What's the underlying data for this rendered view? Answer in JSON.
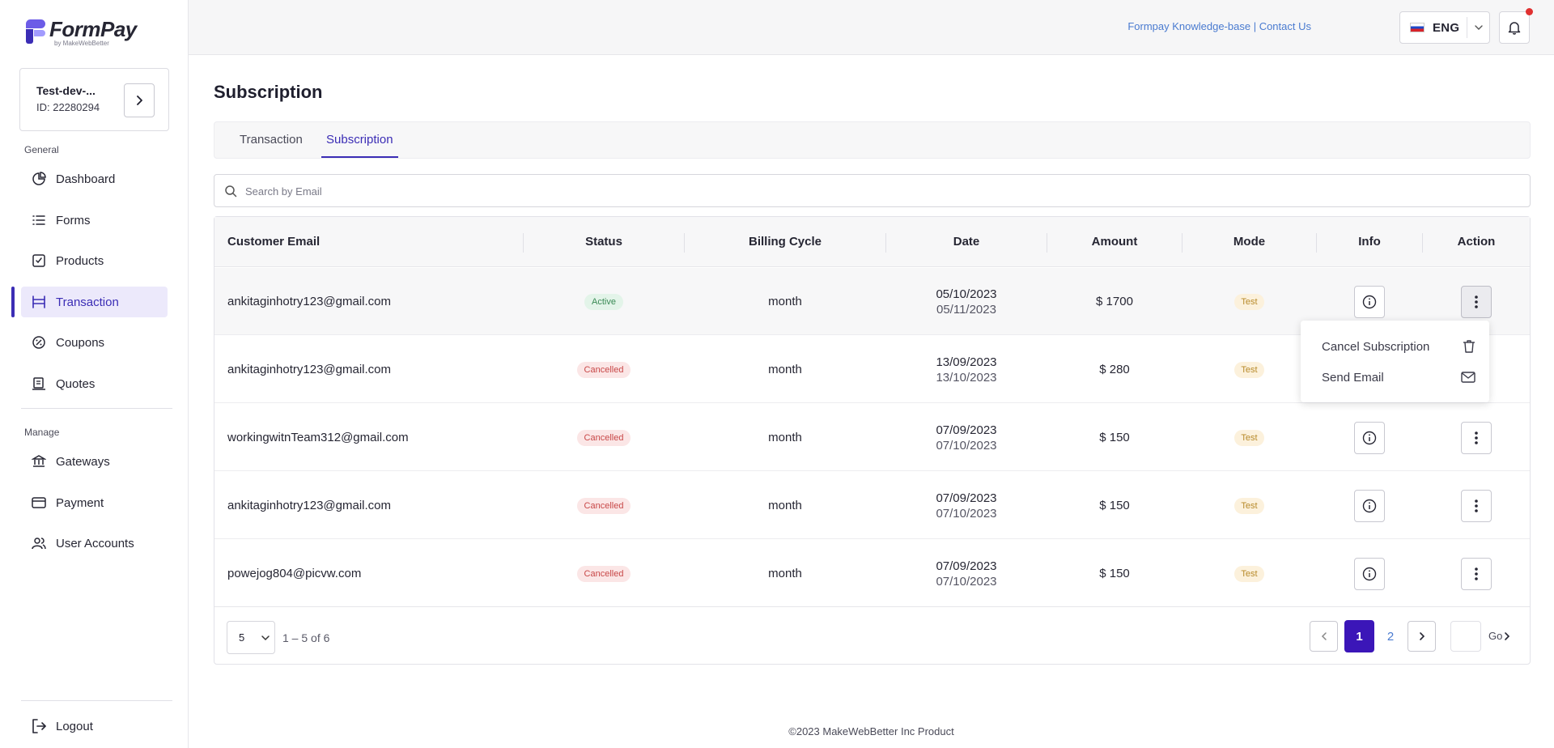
{
  "app": {
    "logo_title": "FormPay",
    "logo_sub": "by MakeWebBetter"
  },
  "account": {
    "name": "Test-dev-...",
    "id": "ID: 22280294"
  },
  "sidebar": {
    "general_label": "General",
    "manage_label": "Manage",
    "items": [
      {
        "label": "Dashboard",
        "icon": "pie-chart-icon"
      },
      {
        "label": "Forms",
        "icon": "list-icon"
      },
      {
        "label": "Products",
        "icon": "product-box-icon"
      },
      {
        "label": "Transaction",
        "icon": "transaction-icon",
        "active": true
      },
      {
        "label": "Coupons",
        "icon": "coupon-icon"
      },
      {
        "label": "Quotes",
        "icon": "quotes-icon"
      },
      {
        "label": "Gateways",
        "icon": "bank-icon"
      },
      {
        "label": "Payment",
        "icon": "card-icon"
      },
      {
        "label": "User Accounts",
        "icon": "users-icon"
      }
    ],
    "logout_label": "Logout"
  },
  "topbar": {
    "knowledge_base": "Formpay Knowledge-base",
    "separator": " | ",
    "contact": "Contact Us",
    "language": "ENG"
  },
  "page": {
    "title": "Subscription",
    "tabs": [
      {
        "label": "Transaction",
        "active": false
      },
      {
        "label": "Subscription",
        "active": true
      }
    ],
    "search_placeholder": "Search by Email"
  },
  "table": {
    "columns": [
      "Customer Email",
      "Status",
      "Billing Cycle",
      "Date",
      "Amount",
      "Mode",
      "Info",
      "Action"
    ],
    "rows": [
      {
        "email": "ankitaginhotry123@gmail.com",
        "status": "Active",
        "cycle": "month",
        "date_start": "05/10/2023",
        "date_end": "05/11/2023",
        "amount": "$ 1700",
        "mode": "Test"
      },
      {
        "email": "ankitaginhotry123@gmail.com",
        "status": "Cancelled",
        "cycle": "month",
        "date_start": "13/09/2023",
        "date_end": "13/10/2023",
        "amount": "$ 280",
        "mode": "Test"
      },
      {
        "email": "workingwitnTeam312@gmail.com",
        "status": "Cancelled",
        "cycle": "month",
        "date_start": "07/09/2023",
        "date_end": "07/10/2023",
        "amount": "$ 150",
        "mode": "Test"
      },
      {
        "email": "ankitaginhotry123@gmail.com",
        "status": "Cancelled",
        "cycle": "month",
        "date_start": "07/09/2023",
        "date_end": "07/10/2023",
        "amount": "$ 150",
        "mode": "Test"
      },
      {
        "email": "powejog804@picvw.com",
        "status": "Cancelled",
        "cycle": "month",
        "date_start": "07/09/2023",
        "date_end": "07/10/2023",
        "amount": "$ 150",
        "mode": "Test"
      }
    ]
  },
  "action_menu": {
    "cancel": "Cancel Subscription",
    "send_email": "Send Email"
  },
  "pagination": {
    "per_page": "5",
    "range": "1 – 5 of 6",
    "pages": [
      "1",
      "2"
    ],
    "current_page": "1",
    "go_label": "Go"
  },
  "footer": {
    "copyright": "©2023 MakeWebBetter Inc Product"
  },
  "colors": {
    "accent": "#3b2db5",
    "active_page": "#3b16b8",
    "link": "#4a7bd0",
    "status_active": "#3a8a55",
    "status_cancelled": "#c84848",
    "mode_test": "#b78a2a"
  }
}
